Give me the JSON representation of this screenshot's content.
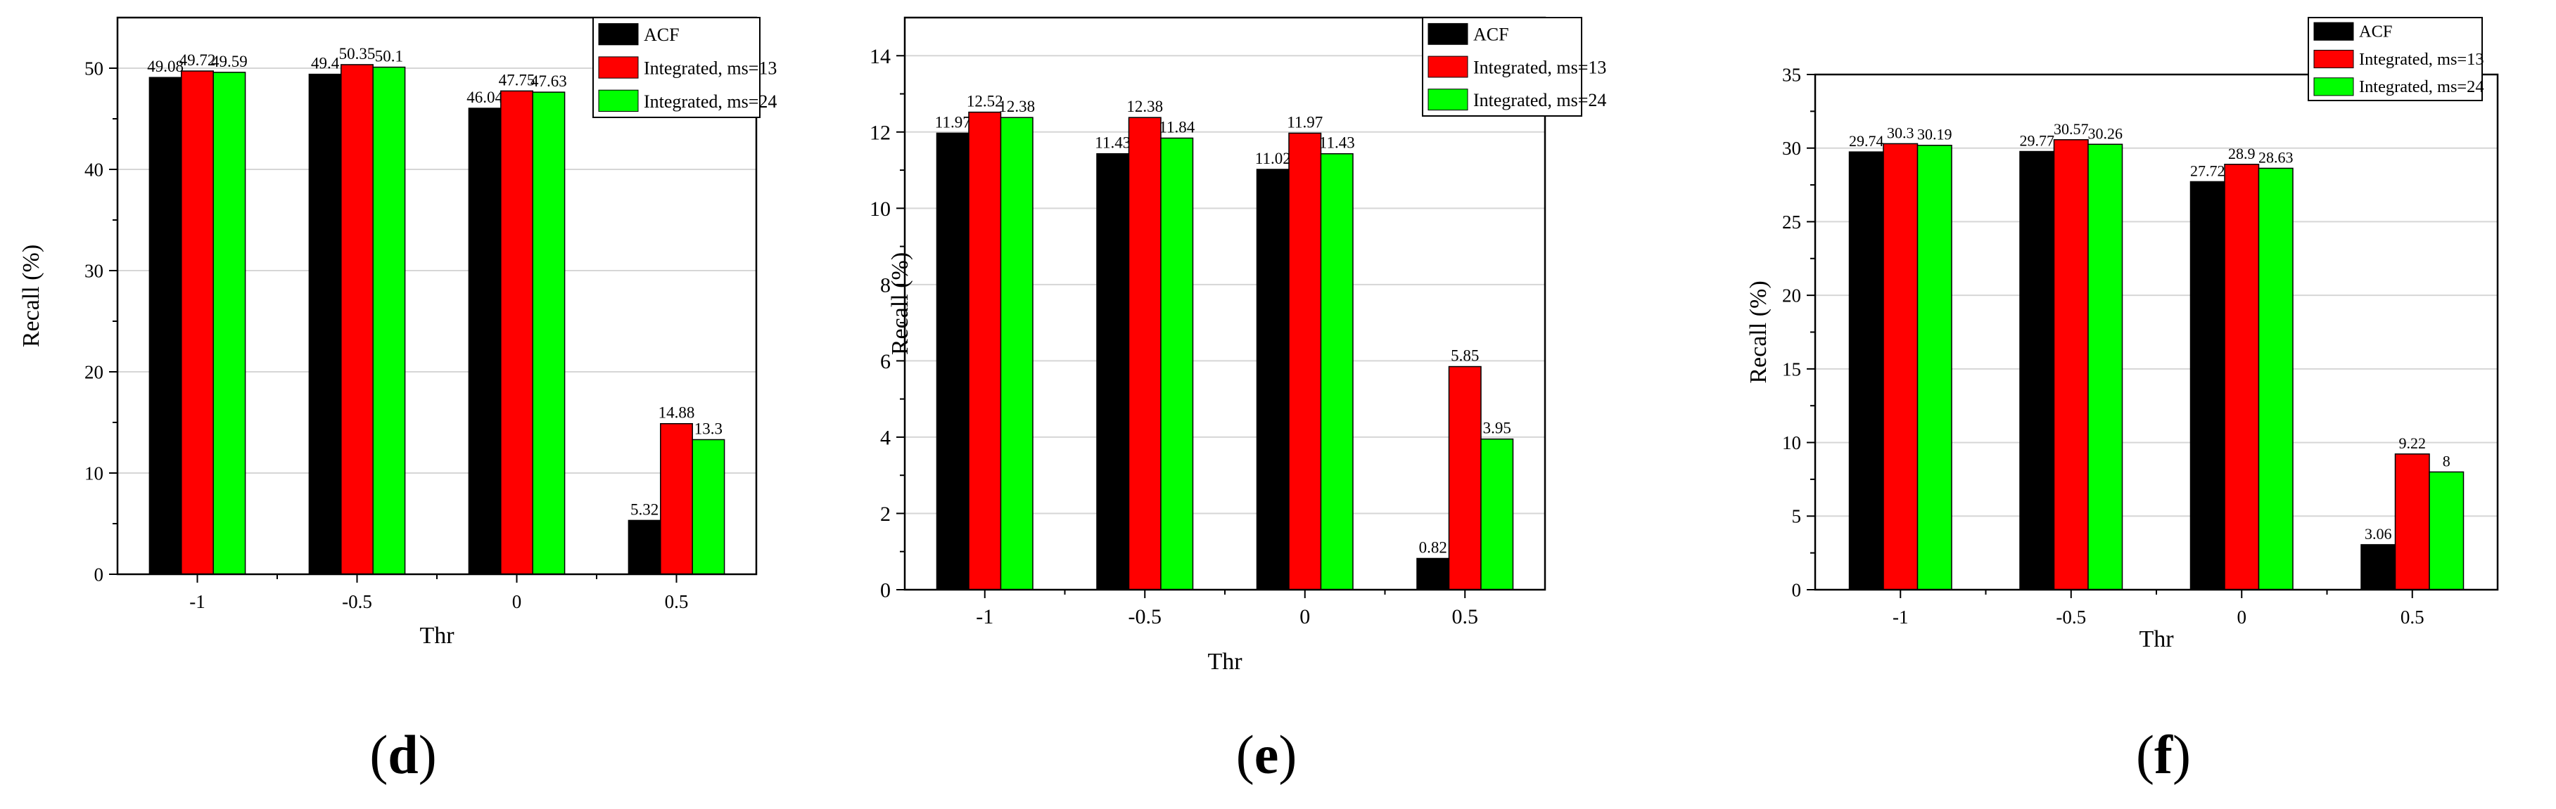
{
  "colors": {
    "ACF": "#000000",
    "Integrated, ms=13": "#ff0000",
    "Integrated, ms=24": "#00ff00"
  },
  "panel_labels": [
    "(d)",
    "(e)",
    "(f)"
  ],
  "chart_data": [
    {
      "type": "bar",
      "label": "(d)",
      "categories": [
        "-1",
        "-0.5",
        "0",
        "0.5"
      ],
      "xlabel": "Thr",
      "ylabel": "Recall (%)",
      "ylim": [
        0,
        55
      ],
      "yticks": [
        0,
        10,
        20,
        30,
        40,
        50
      ],
      "grid": true,
      "legend": "top-right",
      "series": [
        {
          "name": "ACF",
          "values": [
            49.08,
            49.4,
            46.04,
            5.32
          ],
          "labels": [
            "49.08",
            "49.4",
            "46.04",
            "5.32"
          ]
        },
        {
          "name": "Integrated, ms=13",
          "values": [
            49.72,
            50.35,
            47.75,
            14.88
          ],
          "labels": [
            "49.72",
            "50.35",
            "47.75",
            "14.88"
          ]
        },
        {
          "name": "Integrated, ms=24",
          "values": [
            49.59,
            50.1,
            47.63,
            13.3
          ],
          "labels": [
            "49.59",
            "50.1",
            "47.63",
            "13.3"
          ]
        }
      ]
    },
    {
      "type": "bar",
      "label": "(e)",
      "categories": [
        "-1",
        "-0.5",
        "0",
        "0.5"
      ],
      "xlabel": "Thr",
      "ylabel": "Recall (%)",
      "ylim": [
        0,
        15
      ],
      "yticks": [
        0,
        2,
        4,
        6,
        8,
        10,
        12,
        14
      ],
      "grid": true,
      "legend": "top-right",
      "series": [
        {
          "name": "ACF",
          "values": [
            11.97,
            11.43,
            11.02,
            0.82
          ],
          "labels": [
            "11.97",
            "11.43",
            "11.02",
            "0.82"
          ]
        },
        {
          "name": "Integrated, ms=13",
          "values": [
            12.52,
            12.38,
            11.97,
            5.85
          ],
          "labels": [
            "12.52",
            "12.38",
            "11.97",
            "5.85"
          ]
        },
        {
          "name": "Integrated, ms=24",
          "values": [
            12.38,
            11.84,
            11.43,
            3.95
          ],
          "labels": [
            "12.38",
            "11.84",
            "11.43",
            "3.95"
          ]
        }
      ]
    },
    {
      "type": "bar",
      "label": "(f)",
      "categories": [
        "-1",
        "-0.5",
        "0",
        "0.5"
      ],
      "xlabel": "Thr",
      "ylabel": "Recall (%)",
      "ylim": [
        0,
        35
      ],
      "yticks": [
        0,
        5,
        10,
        15,
        20,
        25,
        30,
        35
      ],
      "grid": true,
      "legend": "top-right",
      "series": [
        {
          "name": "ACF",
          "values": [
            29.74,
            29.77,
            27.72,
            3.06
          ],
          "labels": [
            "29.74",
            "29.77",
            "27.72",
            "3.06"
          ]
        },
        {
          "name": "Integrated, ms=13",
          "values": [
            30.3,
            30.57,
            28.9,
            9.22
          ],
          "labels": [
            "30.3",
            "30.57",
            "28.9",
            "9.22"
          ]
        },
        {
          "name": "Integrated, ms=24",
          "values": [
            30.19,
            30.26,
            28.63,
            8
          ],
          "labels": [
            "30.19",
            "30.26",
            "28.63",
            "8"
          ]
        }
      ]
    }
  ]
}
